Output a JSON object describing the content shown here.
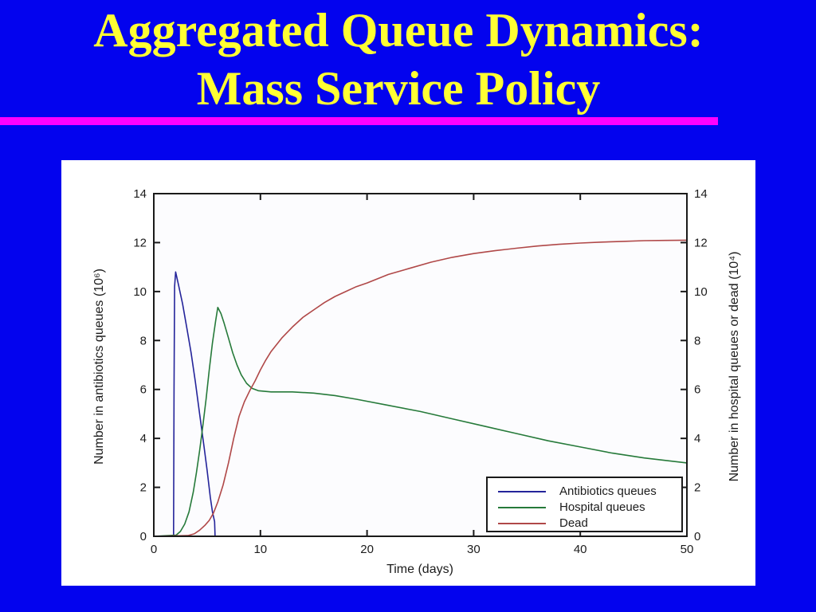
{
  "slide": {
    "title_line1": "Aggregated Queue Dynamics:",
    "title_line2": "Mass Service Policy"
  },
  "colors": {
    "background": "#0303ee",
    "title_text": "#ffff33",
    "underline": "#ff00ff",
    "panel_background": "#ffffff",
    "axis": "#1a1a1a",
    "antibiotics_line": "#24249a",
    "hospital_line": "#267a3a",
    "dead_line": "#b04848"
  },
  "chart_data": {
    "type": "line",
    "title": "",
    "xlabel": "Time (days)",
    "ylabel_left": "Number in antibiotics queues (10⁶)",
    "ylabel_right": "Number in hospital queues or dead (10⁴)",
    "xlim": [
      0,
      50
    ],
    "ylim": [
      0,
      14
    ],
    "xticks": [
      0,
      10,
      20,
      30,
      40,
      50
    ],
    "yticks_left": [
      0,
      2,
      4,
      6,
      8,
      10,
      12,
      14
    ],
    "yticks_right": [
      0,
      2,
      4,
      6,
      8,
      10,
      12,
      14
    ],
    "grid": false,
    "legend_position": "bottom-right-inside",
    "series": [
      {
        "name": "Antibiotics queues",
        "color": "#24249a",
        "axis": "left",
        "points": [
          [
            0,
            0
          ],
          [
            1.85,
            0
          ],
          [
            1.9,
            6.0
          ],
          [
            1.95,
            10.2
          ],
          [
            2.05,
            10.8
          ],
          [
            2.3,
            10.3
          ],
          [
            2.7,
            9.5
          ],
          [
            3.1,
            8.5
          ],
          [
            3.5,
            7.5
          ],
          [
            3.9,
            6.3
          ],
          [
            4.3,
            5.0
          ],
          [
            4.7,
            3.7
          ],
          [
            5.0,
            2.7
          ],
          [
            5.3,
            1.6
          ],
          [
            5.5,
            1.0
          ],
          [
            5.7,
            0.6
          ],
          [
            5.75,
            0
          ],
          [
            50,
            0
          ]
        ]
      },
      {
        "name": "Hospital queues",
        "color": "#267a3a",
        "axis": "right",
        "points": [
          [
            0,
            0
          ],
          [
            2.1,
            0.05
          ],
          [
            2.5,
            0.2
          ],
          [
            2.9,
            0.5
          ],
          [
            3.3,
            1.0
          ],
          [
            3.7,
            1.8
          ],
          [
            4.0,
            2.6
          ],
          [
            4.3,
            3.5
          ],
          [
            4.6,
            4.5
          ],
          [
            4.9,
            5.6
          ],
          [
            5.2,
            6.8
          ],
          [
            5.5,
            7.9
          ],
          [
            5.8,
            8.8
          ],
          [
            6.0,
            9.35
          ],
          [
            6.3,
            9.1
          ],
          [
            6.6,
            8.7
          ],
          [
            7.0,
            8.1
          ],
          [
            7.4,
            7.5
          ],
          [
            7.8,
            7.0
          ],
          [
            8.2,
            6.6
          ],
          [
            8.7,
            6.25
          ],
          [
            9.2,
            6.05
          ],
          [
            9.8,
            5.95
          ],
          [
            11,
            5.9
          ],
          [
            13,
            5.9
          ],
          [
            15,
            5.85
          ],
          [
            17,
            5.75
          ],
          [
            19,
            5.6
          ],
          [
            22,
            5.35
          ],
          [
            25,
            5.1
          ],
          [
            28,
            4.8
          ],
          [
            31,
            4.5
          ],
          [
            34,
            4.2
          ],
          [
            37,
            3.9
          ],
          [
            40,
            3.65
          ],
          [
            43,
            3.4
          ],
          [
            46,
            3.2
          ],
          [
            48,
            3.1
          ],
          [
            50,
            3.0
          ]
        ]
      },
      {
        "name": "Dead",
        "color": "#b04848",
        "axis": "right",
        "points": [
          [
            0,
            0
          ],
          [
            3.2,
            0.03
          ],
          [
            3.8,
            0.1
          ],
          [
            4.3,
            0.25
          ],
          [
            4.8,
            0.45
          ],
          [
            5.2,
            0.65
          ],
          [
            5.6,
            0.95
          ],
          [
            6.0,
            1.4
          ],
          [
            6.5,
            2.1
          ],
          [
            7.0,
            3.0
          ],
          [
            7.5,
            4.0
          ],
          [
            8.0,
            4.9
          ],
          [
            8.5,
            5.5
          ],
          [
            9.0,
            5.95
          ],
          [
            9.5,
            6.35
          ],
          [
            10.0,
            6.8
          ],
          [
            10.5,
            7.2
          ],
          [
            11,
            7.55
          ],
          [
            12,
            8.1
          ],
          [
            13,
            8.55
          ],
          [
            14,
            8.95
          ],
          [
            15,
            9.25
          ],
          [
            16,
            9.55
          ],
          [
            17,
            9.8
          ],
          [
            18,
            10.0
          ],
          [
            19,
            10.2
          ],
          [
            20,
            10.35
          ],
          [
            22,
            10.7
          ],
          [
            24,
            10.95
          ],
          [
            26,
            11.2
          ],
          [
            28,
            11.4
          ],
          [
            30,
            11.55
          ],
          [
            32,
            11.67
          ],
          [
            34,
            11.77
          ],
          [
            36,
            11.86
          ],
          [
            38,
            11.93
          ],
          [
            40,
            11.98
          ],
          [
            42,
            12.02
          ],
          [
            44,
            12.05
          ],
          [
            46,
            12.08
          ],
          [
            48,
            12.09
          ],
          [
            50,
            12.1
          ]
        ]
      }
    ]
  }
}
